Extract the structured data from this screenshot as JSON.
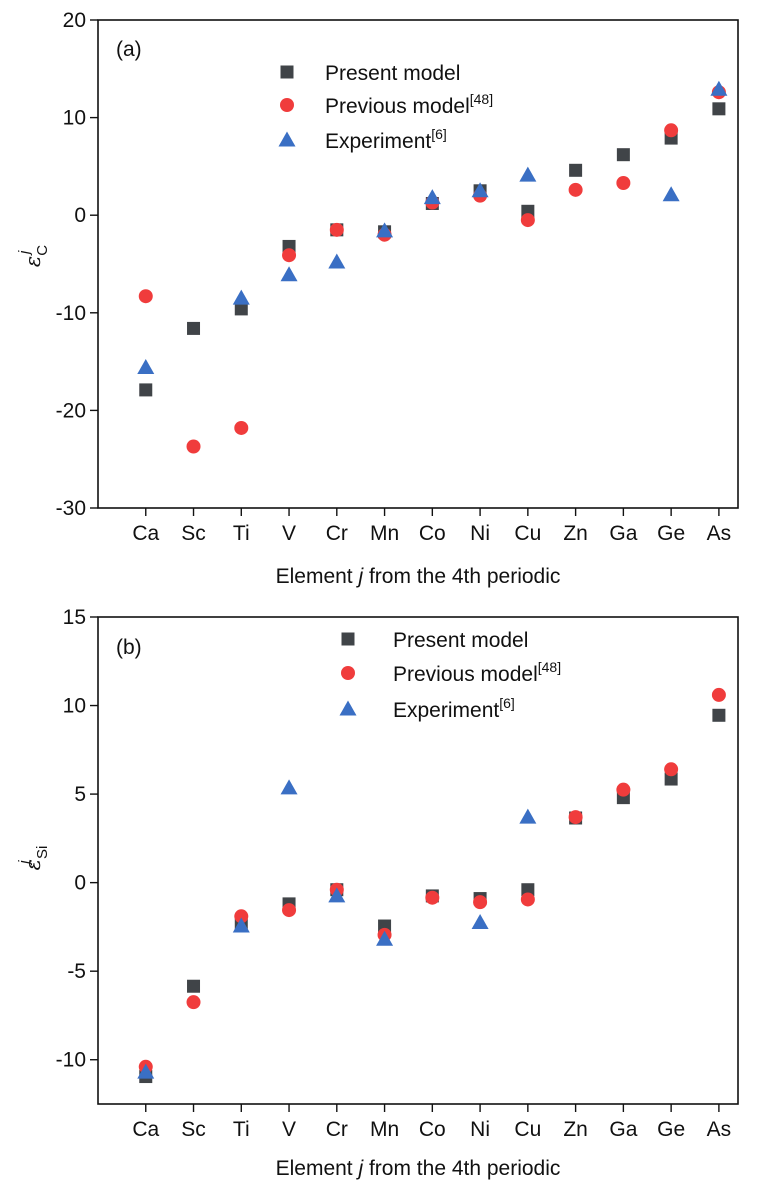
{
  "chart_data": [
    {
      "type": "scatter",
      "panel_label": "(a)",
      "categories": [
        "Ca",
        "Sc",
        "Ti",
        "V",
        "Cr",
        "Mn",
        "Co",
        "Ni",
        "Cu",
        "Zn",
        "Ga",
        "Ge",
        "As"
      ],
      "xlabel_parts": [
        "Element ",
        "j",
        " from the 4th periodic"
      ],
      "ylabel_main": "ε",
      "ylabel_sup": "j",
      "ylabel_sub": "C",
      "ylim": [
        -30,
        20
      ],
      "yticks": [
        -30,
        -20,
        -10,
        0,
        10,
        20
      ],
      "ytick_labels": [
        "-30",
        "-20",
        "-10",
        "0",
        "10",
        "20"
      ],
      "legend_position": "top-center",
      "series": [
        {
          "name": "Present model",
          "marker": "square",
          "color": "#404448",
          "values": [
            -17.9,
            -11.6,
            -9.6,
            -3.2,
            -1.5,
            -1.7,
            1.2,
            2.5,
            0.4,
            4.6,
            6.2,
            7.9,
            10.9
          ]
        },
        {
          "name": "Previous model",
          "name_sup": "[48]",
          "marker": "circle",
          "color": "#f03c3c",
          "values": [
            -8.3,
            -23.7,
            -21.8,
            -4.1,
            -1.5,
            -2.0,
            1.3,
            2.0,
            -0.5,
            2.6,
            3.3,
            8.7,
            12.6
          ]
        },
        {
          "name": "Experiment",
          "name_sup": "[6]",
          "marker": "triangle",
          "color": "#3a6fc4",
          "values": [
            -15.6,
            null,
            -8.5,
            -6.1,
            -4.8,
            -1.6,
            1.8,
            2.5,
            4.1,
            null,
            null,
            2.1,
            12.9
          ]
        }
      ]
    },
    {
      "type": "scatter",
      "panel_label": "(b)",
      "categories": [
        "Ca",
        "Sc",
        "Ti",
        "V",
        "Cr",
        "Mn",
        "Co",
        "Ni",
        "Cu",
        "Zn",
        "Ga",
        "Ge",
        "As"
      ],
      "xlabel_parts": [
        "Element ",
        "j",
        " from the 4th periodic"
      ],
      "ylabel_main": "ε",
      "ylabel_sup": "j",
      "ylabel_sub": "Si",
      "ylim": [
        -12.5,
        15
      ],
      "yticks": [
        -10,
        -5,
        0,
        5,
        10,
        15
      ],
      "ytick_labels": [
        "-10",
        "-5",
        "0",
        "5",
        "10",
        "15"
      ],
      "legend_position": "top-center",
      "series": [
        {
          "name": "Present model",
          "marker": "square",
          "color": "#404448",
          "values": [
            -10.95,
            -5.85,
            -2.4,
            -1.2,
            -0.4,
            -2.45,
            -0.75,
            -0.9,
            -0.4,
            3.65,
            4.8,
            5.85,
            9.45
          ]
        },
        {
          "name": "Previous model",
          "name_sup": "[48]",
          "marker": "circle",
          "color": "#f03c3c",
          "values": [
            -10.4,
            -6.75,
            -1.9,
            -1.55,
            -0.4,
            -2.95,
            -0.85,
            -1.1,
            -0.95,
            3.7,
            5.25,
            6.4,
            10.6
          ]
        },
        {
          "name": "Experiment",
          "name_sup": "[6]",
          "marker": "triangle",
          "color": "#3a6fc4",
          "values": [
            -10.7,
            null,
            -2.45,
            5.35,
            -0.75,
            -3.2,
            null,
            -2.25,
            3.7,
            null,
            null,
            null,
            null
          ]
        }
      ]
    }
  ]
}
